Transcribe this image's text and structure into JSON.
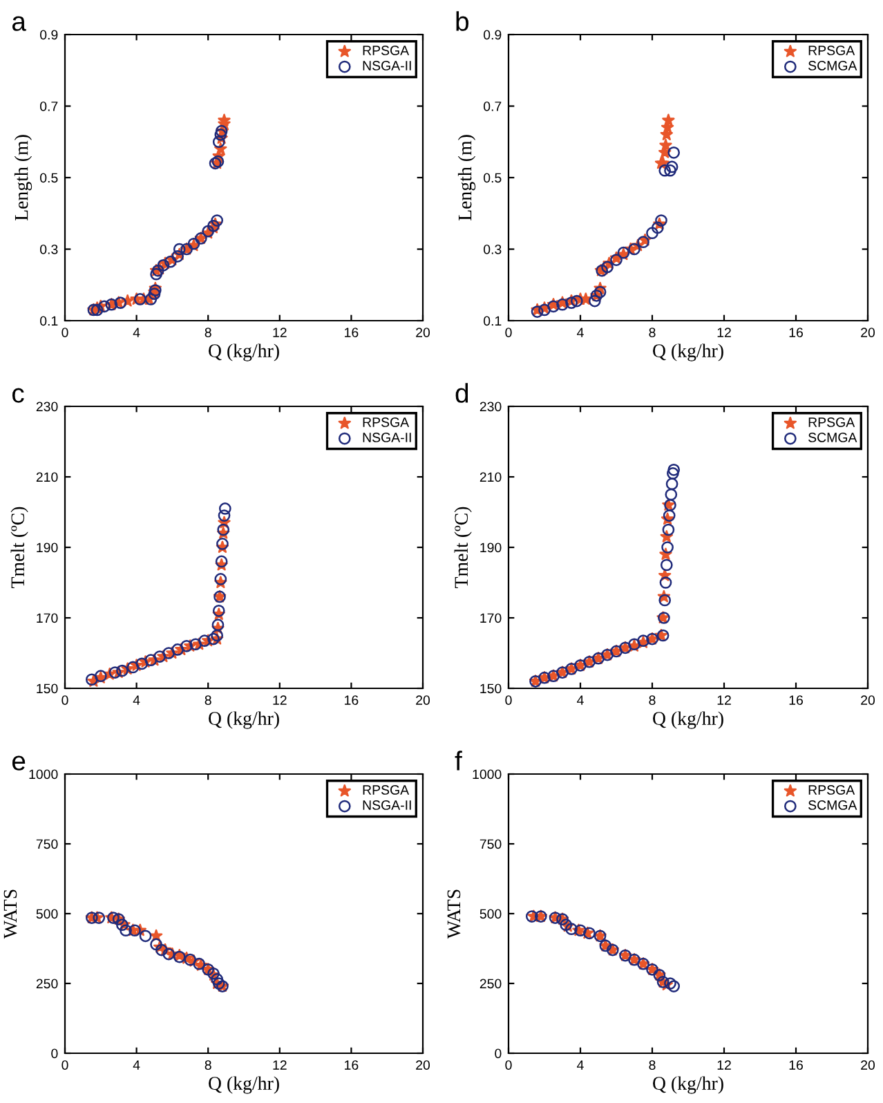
{
  "chart_data": [
    {
      "type": "scatter",
      "title": "a",
      "xlabel": "Q (kg/hr)",
      "ylabel": "Length (m)",
      "xlim": [
        0,
        20
      ],
      "xticks": [
        0,
        4,
        8,
        12,
        16,
        20
      ],
      "ylim": [
        0.1,
        0.9
      ],
      "yticks": [
        0.1,
        0.3,
        0.5,
        0.7,
        0.9
      ],
      "legend": "top right",
      "grid": false,
      "series": [
        {
          "name": "RPSGA",
          "color": "#e8562a",
          "marker": "star",
          "x": [
            1.6,
            1.8,
            2.0,
            2.6,
            3.0,
            3.5,
            4.0,
            4.4,
            4.7,
            5.0,
            5.05,
            5.1,
            5.3,
            5.6,
            6.0,
            6.4,
            6.8,
            7.2,
            7.6,
            8.0,
            8.3,
            8.4,
            8.5,
            8.6,
            8.7,
            8.75,
            8.8,
            8.9,
            8.9
          ],
          "values": [
            0.13,
            0.135,
            0.14,
            0.145,
            0.15,
            0.155,
            0.16,
            0.16,
            0.16,
            0.18,
            0.19,
            0.24,
            0.245,
            0.26,
            0.27,
            0.285,
            0.3,
            0.31,
            0.33,
            0.345,
            0.36,
            0.37,
            0.54,
            0.56,
            0.58,
            0.61,
            0.63,
            0.65,
            0.66
          ]
        },
        {
          "name": "NSGA-II",
          "color": "#1f2a7a",
          "marker": "circle",
          "x": [
            1.6,
            1.8,
            2.2,
            2.6,
            3.1,
            4.2,
            4.8,
            5.0,
            5.05,
            5.1,
            5.2,
            5.5,
            5.9,
            6.3,
            6.4,
            6.8,
            7.2,
            7.6,
            8.0,
            8.3,
            8.5,
            8.4,
            8.55,
            8.6,
            8.7,
            8.75
          ],
          "values": [
            0.13,
            0.13,
            0.14,
            0.145,
            0.15,
            0.16,
            0.16,
            0.175,
            0.185,
            0.23,
            0.24,
            0.255,
            0.265,
            0.28,
            0.3,
            0.3,
            0.315,
            0.33,
            0.35,
            0.365,
            0.38,
            0.54,
            0.545,
            0.6,
            0.62,
            0.63
          ]
        }
      ]
    },
    {
      "type": "scatter",
      "title": "b",
      "xlabel": "Q (kg/hr)",
      "ylabel": "Length (m)",
      "xlim": [
        0,
        20
      ],
      "xticks": [
        0,
        4,
        8,
        12,
        16,
        20
      ],
      "ylim": [
        0.1,
        0.9
      ],
      "yticks": [
        0.1,
        0.3,
        0.5,
        0.7,
        0.9
      ],
      "legend": "top right",
      "grid": false,
      "series": [
        {
          "name": "RPSGA",
          "color": "#e8562a",
          "marker": "star",
          "x": [
            1.6,
            2.0,
            2.5,
            3.0,
            3.5,
            4.0,
            4.3,
            4.9,
            5.1,
            5.15,
            5.3,
            5.6,
            6.0,
            6.4,
            6.8,
            7.2,
            7.6,
            8.4,
            8.5,
            8.6,
            8.7,
            8.75,
            8.8,
            8.85,
            8.9
          ],
          "values": [
            0.13,
            0.135,
            0.145,
            0.15,
            0.155,
            0.16,
            0.16,
            0.17,
            0.19,
            0.24,
            0.245,
            0.26,
            0.275,
            0.285,
            0.3,
            0.31,
            0.325,
            0.37,
            0.54,
            0.54,
            0.57,
            0.59,
            0.62,
            0.64,
            0.66
          ]
        },
        {
          "name": "SCMGA",
          "color": "#1f2a7a",
          "marker": "circle",
          "x": [
            1.6,
            2.0,
            2.5,
            3.0,
            3.5,
            3.8,
            4.8,
            4.9,
            5.1,
            5.2,
            5.5,
            6.0,
            6.4,
            7.0,
            7.5,
            8.0,
            8.3,
            8.5,
            8.7,
            9.0,
            9.1,
            9.2
          ],
          "values": [
            0.125,
            0.13,
            0.14,
            0.145,
            0.15,
            0.155,
            0.155,
            0.17,
            0.18,
            0.24,
            0.25,
            0.27,
            0.29,
            0.3,
            0.32,
            0.345,
            0.36,
            0.38,
            0.52,
            0.52,
            0.53,
            0.57
          ]
        }
      ]
    },
    {
      "type": "scatter",
      "title": "c",
      "xlabel": "Q (kg/hr)",
      "ylabel": "Tmelt (ºC)",
      "xlim": [
        0,
        20
      ],
      "xticks": [
        0,
        4,
        8,
        12,
        16,
        20
      ],
      "ylim": [
        150,
        230
      ],
      "yticks": [
        150,
        170,
        190,
        210,
        230
      ],
      "legend": "top right",
      "grid": false,
      "series": [
        {
          "name": "RPSGA",
          "color": "#e8562a",
          "marker": "star",
          "x": [
            1.6,
            2.0,
            2.5,
            3.0,
            3.5,
            4.0,
            4.5,
            5.0,
            5.5,
            6.0,
            6.5,
            7.0,
            7.5,
            8.0,
            8.5,
            8.55,
            8.6,
            8.65,
            8.7,
            8.75,
            8.8,
            8.85,
            8.9
          ],
          "values": [
            152,
            153,
            154,
            154.5,
            155.5,
            156.5,
            157.5,
            158,
            159,
            160,
            161,
            162,
            162.5,
            163.5,
            164,
            167,
            171,
            176,
            180,
            185,
            190,
            194,
            197
          ]
        },
        {
          "name": "NSGA-II",
          "color": "#1f2a7a",
          "marker": "circle",
          "x": [
            1.5,
            2.0,
            2.8,
            3.2,
            3.8,
            4.3,
            4.8,
            5.3,
            5.8,
            6.3,
            6.8,
            7.3,
            7.8,
            8.3,
            8.5,
            8.55,
            8.6,
            8.65,
            8.7,
            8.75,
            8.8,
            8.85,
            8.9,
            8.95
          ],
          "values": [
            152.5,
            153.5,
            154.5,
            155,
            156,
            157,
            158,
            159,
            160,
            161,
            162,
            162.5,
            163.5,
            164,
            165,
            168,
            172,
            176,
            181,
            186,
            191,
            195,
            199,
            201
          ]
        }
      ]
    },
    {
      "type": "scatter",
      "title": "d",
      "xlabel": "Q (kg/hr)",
      "ylabel": "Tmelt (ºC)",
      "xlim": [
        0,
        20
      ],
      "xticks": [
        0,
        4,
        8,
        12,
        16,
        20
      ],
      "ylim": [
        150,
        230
      ],
      "yticks": [
        150,
        170,
        190,
        210,
        230
      ],
      "legend": "top right",
      "grid": false,
      "series": [
        {
          "name": "RPSGA",
          "color": "#e8562a",
          "marker": "star",
          "x": [
            1.5,
            2.0,
            2.5,
            3.0,
            3.5,
            4.0,
            4.5,
            5.0,
            5.5,
            6.0,
            6.5,
            7.0,
            7.5,
            8.0,
            8.5,
            8.6,
            8.65,
            8.7,
            8.75,
            8.8,
            8.85,
            8.9
          ],
          "values": [
            152,
            153,
            153.5,
            154.5,
            155.5,
            156.5,
            157.5,
            158.5,
            159.5,
            160.5,
            161.5,
            162,
            163,
            164,
            165,
            170,
            176,
            182,
            188,
            193,
            198,
            202
          ]
        },
        {
          "name": "SCMGA",
          "color": "#1f2a7a",
          "marker": "circle",
          "x": [
            1.5,
            2.0,
            2.5,
            3.0,
            3.5,
            4.0,
            4.5,
            5.0,
            5.5,
            6.0,
            6.5,
            7.0,
            7.5,
            8.0,
            8.6,
            8.65,
            8.7,
            8.75,
            8.8,
            8.85,
            8.9,
            8.95,
            9.0,
            9.05,
            9.1,
            9.15,
            9.2
          ],
          "values": [
            152,
            153,
            153.5,
            154.5,
            155.5,
            156.5,
            157.5,
            158.5,
            159.5,
            160.5,
            161.5,
            162.5,
            163.5,
            164,
            165,
            170,
            175,
            180,
            185,
            190,
            195,
            199,
            202,
            205,
            208,
            211,
            212
          ]
        }
      ]
    },
    {
      "type": "scatter",
      "title": "e",
      "xlabel": "Q (kg/hr)",
      "ylabel": "WATS",
      "xlim": [
        0,
        20
      ],
      "xticks": [
        0,
        4,
        8,
        12,
        16,
        20
      ],
      "ylim": [
        0,
        1000
      ],
      "yticks": [
        0,
        250,
        500,
        750,
        1000
      ],
      "legend": "top right",
      "grid": false,
      "series": [
        {
          "name": "RPSGA",
          "color": "#e8562a",
          "marker": "star",
          "x": [
            1.5,
            1.8,
            2.6,
            3.0,
            3.3,
            3.8,
            4.2,
            5.1,
            5.3,
            5.6,
            6.0,
            6.4,
            6.8,
            7.2,
            7.6,
            8.0,
            8.3,
            8.5,
            8.8
          ],
          "values": [
            485,
            485,
            485,
            480,
            460,
            440,
            440,
            420,
            380,
            370,
            355,
            350,
            340,
            330,
            315,
            300,
            280,
            250,
            240
          ]
        },
        {
          "name": "NSGA-II",
          "color": "#1f2a7a",
          "marker": "circle",
          "x": [
            1.5,
            1.9,
            2.7,
            3.0,
            3.2,
            3.4,
            3.9,
            4.5,
            5.1,
            5.4,
            5.8,
            6.4,
            7.0,
            7.5,
            8.0,
            8.3,
            8.5,
            8.6,
            8.8
          ],
          "values": [
            485,
            485,
            485,
            480,
            460,
            440,
            440,
            420,
            390,
            370,
            355,
            345,
            335,
            320,
            300,
            285,
            265,
            250,
            240
          ]
        }
      ]
    },
    {
      "type": "scatter",
      "title": "f",
      "xlabel": "Q (kg/hr)",
      "ylabel": "WATS",
      "xlim": [
        0,
        20
      ],
      "xticks": [
        0,
        4,
        8,
        12,
        16,
        20
      ],
      "ylim": [
        0,
        1000
      ],
      "yticks": [
        0,
        250,
        500,
        750,
        1000
      ],
      "legend": "top right",
      "grid": false,
      "series": [
        {
          "name": "RPSGA",
          "color": "#e8562a",
          "marker": "star",
          "x": [
            1.4,
            1.8,
            2.6,
            3.0,
            3.3,
            3.9,
            4.4,
            5.1,
            5.4,
            5.8,
            6.5,
            7.0,
            7.5,
            8.0,
            8.4,
            8.6,
            8.8
          ],
          "values": [
            490,
            490,
            485,
            480,
            455,
            440,
            430,
            420,
            385,
            370,
            350,
            335,
            320,
            300,
            280,
            255,
            245
          ]
        },
        {
          "name": "SCMGA",
          "color": "#1f2a7a",
          "marker": "circle",
          "x": [
            1.3,
            1.8,
            2.6,
            3.0,
            3.2,
            3.5,
            4.0,
            4.5,
            5.1,
            5.4,
            5.8,
            6.5,
            7.0,
            7.5,
            8.0,
            8.4,
            8.6,
            9.0,
            9.2
          ],
          "values": [
            490,
            490,
            485,
            480,
            460,
            445,
            440,
            430,
            420,
            385,
            370,
            350,
            335,
            320,
            300,
            280,
            255,
            250,
            240
          ]
        }
      ]
    }
  ]
}
